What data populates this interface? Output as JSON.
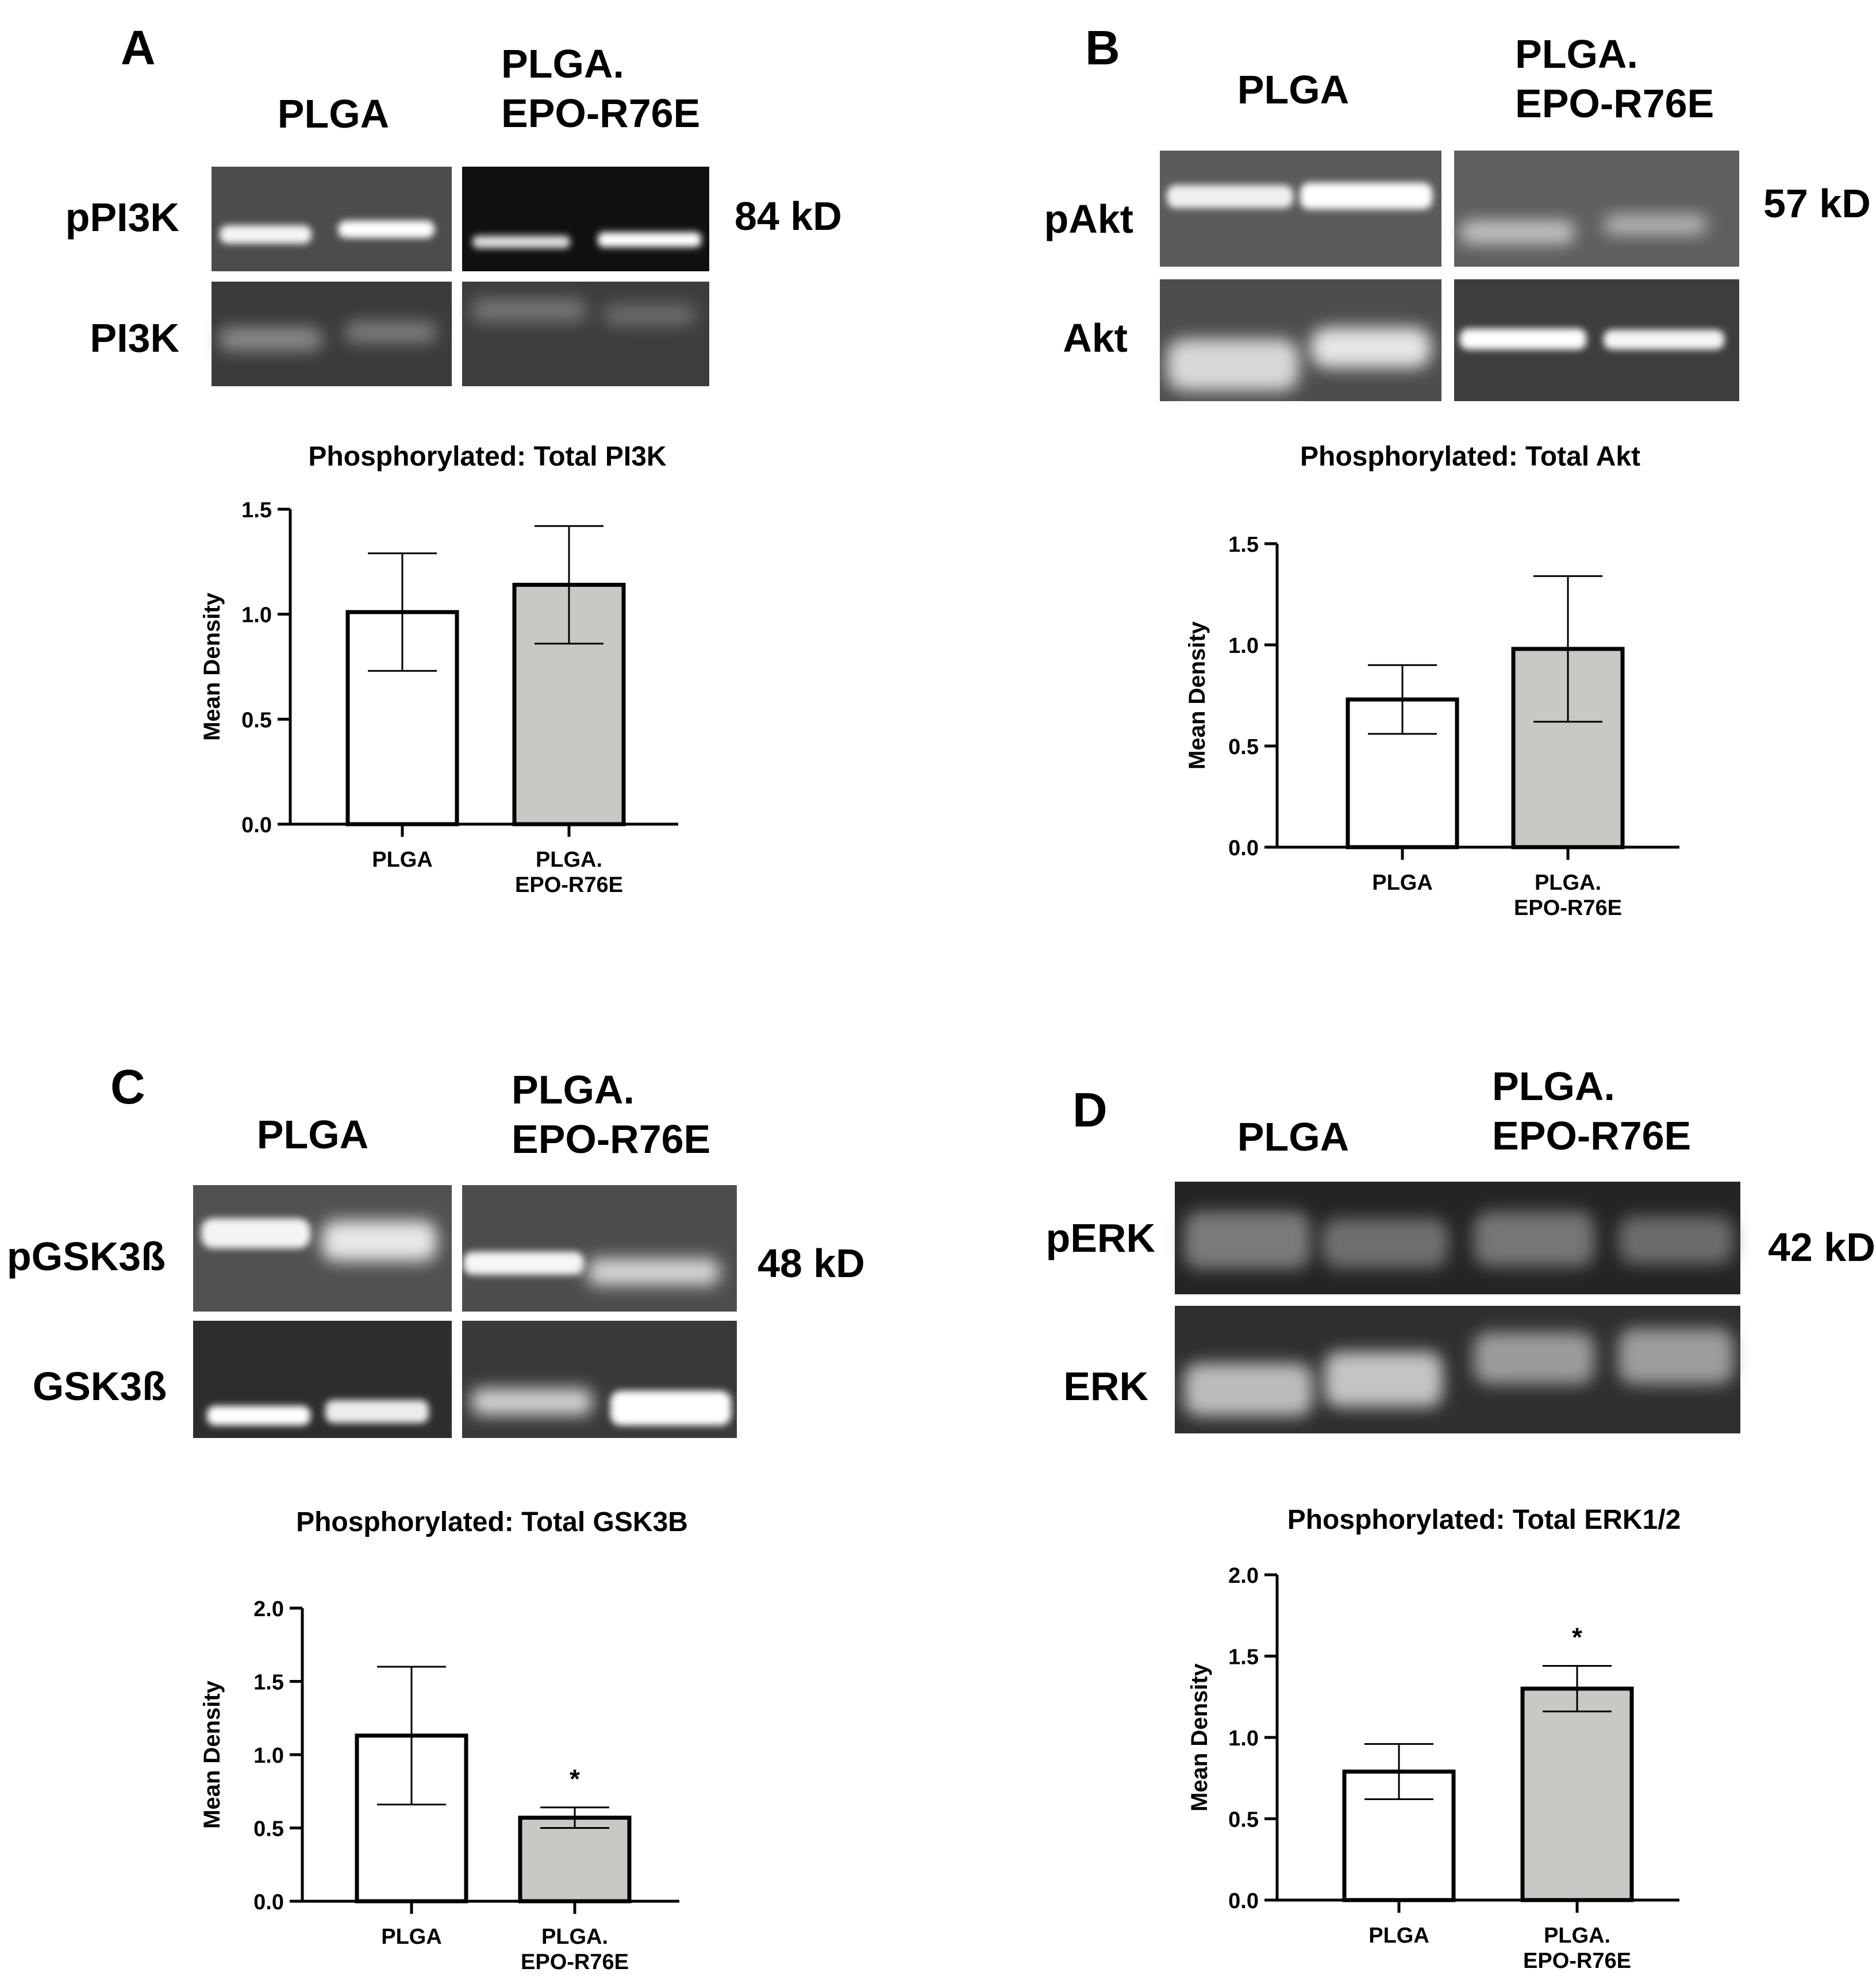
{
  "panels": [
    {
      "letter": "A",
      "blot": {
        "groups": [
          "PLGA",
          "PLGA.|EPO-R76E"
        ],
        "rows": [
          "pPI3K",
          "PI3K"
        ],
        "kd": "84 kD"
      },
      "chart_data": {
        "type": "bar",
        "title": "Phosphorylated: Total PI3K",
        "ylabel": "Mean Density",
        "categories": [
          "PLGA",
          "PLGA.|EPO-R76E"
        ],
        "values": [
          1.01,
          1.14
        ],
        "error": [
          0.28,
          0.28
        ],
        "colors": [
          "#ffffff",
          "#c8c8c4"
        ],
        "ylim": [
          0,
          1.5
        ],
        "yticks": [
          "0.0",
          "0.5",
          "1.0",
          "1.5"
        ],
        "significance": [
          "",
          ""
        ]
      }
    },
    {
      "letter": "B",
      "blot": {
        "groups": [
          "PLGA",
          "PLGA.|EPO-R76E"
        ],
        "rows": [
          "pAkt",
          "Akt"
        ],
        "kd": "57 kD"
      },
      "chart_data": {
        "type": "bar",
        "title": "Phosphorylated: Total Akt",
        "ylabel": "Mean Density",
        "categories": [
          "PLGA",
          "PLGA.|EPO-R76E"
        ],
        "values": [
          0.73,
          0.98
        ],
        "error": [
          0.17,
          0.36
        ],
        "colors": [
          "#ffffff",
          "#c8c8c4"
        ],
        "ylim": [
          0,
          1.5
        ],
        "yticks": [
          "0.0",
          "0.5",
          "1.0",
          "1.5"
        ],
        "significance": [
          "",
          ""
        ]
      }
    },
    {
      "letter": "C",
      "blot": {
        "groups": [
          "PLGA",
          "PLGA.|EPO-R76E"
        ],
        "rows": [
          "pGSK3ß",
          "GSK3ß"
        ],
        "kd": "48 kD"
      },
      "chart_data": {
        "type": "bar",
        "title": "Phosphorylated: Total GSK3B",
        "ylabel": "Mean Density",
        "categories": [
          "PLGA",
          "PLGA.|EPO-R76E"
        ],
        "values": [
          1.13,
          0.57
        ],
        "error": [
          0.47,
          0.07
        ],
        "colors": [
          "#ffffff",
          "#c8c8c4"
        ],
        "ylim": [
          0,
          2.0
        ],
        "yticks": [
          "0.0",
          "0.5",
          "1.0",
          "1.5",
          "2.0"
        ],
        "significance": [
          "",
          "*"
        ]
      }
    },
    {
      "letter": "D",
      "blot": {
        "groups": [
          "PLGA",
          "PLGA.|EPO-R76E"
        ],
        "rows": [
          "pERK",
          "ERK"
        ],
        "kd": "42 kD"
      },
      "chart_data": {
        "type": "bar",
        "title": "Phosphorylated: Total ERK1/2",
        "ylabel": "Mean Density",
        "categories": [
          "PLGA",
          "PLGA.|EPO-R76E"
        ],
        "values": [
          0.79,
          1.3
        ],
        "error": [
          0.17,
          0.14
        ],
        "colors": [
          "#ffffff",
          "#c8c8c4"
        ],
        "ylim": [
          0,
          2.0
        ],
        "yticks": [
          "0.0",
          "0.5",
          "1.0",
          "1.5",
          "2.0"
        ],
        "significance": [
          "",
          "*"
        ]
      }
    }
  ]
}
